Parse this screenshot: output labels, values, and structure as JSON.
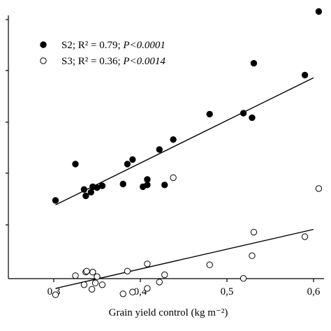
{
  "chart_data": {
    "type": "scatter",
    "xlabel": "Grain yield control (kg m⁻²)",
    "ylabel": "",
    "xlim": [
      0.25,
      0.625
    ],
    "x_ticks": [
      "0,3",
      "0,4",
      "0,5",
      "0,6"
    ],
    "x_tick_values": [
      0.3,
      0.4,
      0.5,
      0.6
    ],
    "grid": false,
    "legend_position": "top-left",
    "series": [
      {
        "name": "S2; R² = 0.79; P<0.0001",
        "label_plain": "S2; R² = 0.79; ",
        "label_italic": "P<0.0001",
        "marker": "filled-circle",
        "color": "#000000",
        "points": [
          [
            0.302,
            0.267
          ],
          [
            0.325,
            0.307
          ],
          [
            0.335,
            0.279
          ],
          [
            0.337,
            0.272
          ],
          [
            0.343,
            0.276
          ],
          [
            0.345,
            0.282
          ],
          [
            0.35,
            0.281
          ],
          [
            0.356,
            0.283
          ],
          [
            0.38,
            0.285
          ],
          [
            0.385,
            0.307
          ],
          [
            0.391,
            0.312
          ],
          [
            0.403,
            0.282
          ],
          [
            0.408,
            0.284
          ],
          [
            0.408,
            0.29
          ],
          [
            0.422,
            0.323
          ],
          [
            0.428,
            0.284
          ],
          [
            0.438,
            0.334
          ],
          [
            0.48,
            0.362
          ],
          [
            0.519,
            0.363
          ],
          [
            0.529,
            0.358
          ],
          [
            0.531,
            0.418
          ],
          [
            0.59,
            0.405
          ],
          [
            0.606,
            0.475
          ]
        ],
        "fit": [
          [
            0.302,
            0.262
          ],
          [
            0.6,
            0.402
          ]
        ]
      },
      {
        "name": "S3; R² = 0.36; P<0.0014",
        "label_plain": "S3; R² = 0.36; ",
        "label_italic": "P<0.0014",
        "marker": "open-circle",
        "color": "#000000",
        "points": [
          [
            0.302,
            0.163
          ],
          [
            0.325,
            0.184
          ],
          [
            0.335,
            0.174
          ],
          [
            0.337,
            0.188
          ],
          [
            0.338,
            0.189
          ],
          [
            0.344,
            0.169
          ],
          [
            0.345,
            0.188
          ],
          [
            0.348,
            0.176
          ],
          [
            0.35,
            0.183
          ],
          [
            0.356,
            0.174
          ],
          [
            0.38,
            0.164
          ],
          [
            0.385,
            0.189
          ],
          [
            0.391,
            0.166
          ],
          [
            0.408,
            0.17
          ],
          [
            0.408,
            0.197
          ],
          [
            0.422,
            0.177
          ],
          [
            0.428,
            0.185
          ],
          [
            0.438,
            0.292
          ],
          [
            0.48,
            0.196
          ],
          [
            0.519,
            0.181
          ],
          [
            0.529,
            0.206
          ],
          [
            0.531,
            0.232
          ],
          [
            0.59,
            0.227
          ],
          [
            0.606,
            0.28
          ]
        ],
        "fit": [
          [
            0.302,
            0.17
          ],
          [
            0.6,
            0.235
          ]
        ]
      }
    ]
  }
}
